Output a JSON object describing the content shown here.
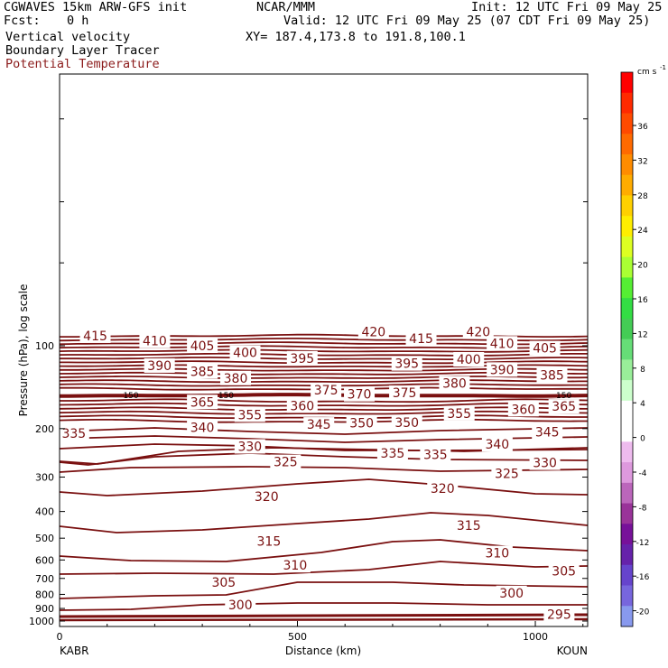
{
  "header": {
    "model": "CGWAVES 15km ARW-GFS init",
    "org": "NCAR/MMM",
    "init": "Init: 12 UTC Fri 09 May 25",
    "fcst_label": "Fcst:",
    "fcst_value": "0 h",
    "valid": "Valid: 12 UTC Fri 09 May 25 (07 CDT Fri 09 May 25)",
    "field1": "Vertical velocity",
    "xy": "XY= 187.4,173.8 to 191.8,100.1",
    "field2": "Boundary Layer Tracer",
    "field3": "Potential Temperature",
    "field3_color": "#8b1a1a"
  },
  "chart_data": {
    "type": "line",
    "title": "",
    "xlabel": "Distance (km)",
    "ylabel": "Pressure (hPa), log scale",
    "xlim": [
      0,
      1110
    ],
    "x_ticks": [
      0,
      500,
      1000
    ],
    "y_ticks": [
      100,
      200,
      300,
      400,
      500,
      600,
      700,
      800,
      900,
      1000
    ],
    "y_scale": "log",
    "endpoint_labels": [
      "KABR",
      "KOUN"
    ],
    "contour_color": "#7a1010",
    "tropopause_marker": {
      "value_label": "150"
    },
    "contour_labels": [
      {
        "x": 75,
        "p": 92,
        "text": "415"
      },
      {
        "x": 200,
        "p": 96,
        "text": "410"
      },
      {
        "x": 300,
        "p": 100,
        "text": "405"
      },
      {
        "x": 390,
        "p": 106,
        "text": "400"
      },
      {
        "x": 660,
        "p": 89,
        "text": "420"
      },
      {
        "x": 760,
        "p": 94,
        "text": "415"
      },
      {
        "x": 880,
        "p": 89,
        "text": "420"
      },
      {
        "x": 930,
        "p": 98,
        "text": "410"
      },
      {
        "x": 1020,
        "p": 102,
        "text": "405"
      },
      {
        "x": 210,
        "p": 118,
        "text": "390"
      },
      {
        "x": 300,
        "p": 124,
        "text": "385"
      },
      {
        "x": 510,
        "p": 111,
        "text": "395"
      },
      {
        "x": 730,
        "p": 116,
        "text": "395"
      },
      {
        "x": 860,
        "p": 112,
        "text": "400"
      },
      {
        "x": 930,
        "p": 122,
        "text": "390"
      },
      {
        "x": 1035,
        "p": 128,
        "text": "385"
      },
      {
        "x": 370,
        "p": 131,
        "text": "380"
      },
      {
        "x": 830,
        "p": 137,
        "text": "380"
      },
      {
        "x": 300,
        "p": 160,
        "text": "365"
      },
      {
        "x": 560,
        "p": 145,
        "text": "375"
      },
      {
        "x": 630,
        "p": 150,
        "text": "370"
      },
      {
        "x": 725,
        "p": 148,
        "text": "375"
      },
      {
        "x": 1060,
        "p": 166,
        "text": "365"
      },
      {
        "x": 400,
        "p": 178,
        "text": "355"
      },
      {
        "x": 510,
        "p": 165,
        "text": "360"
      },
      {
        "x": 840,
        "p": 176,
        "text": "355"
      },
      {
        "x": 975,
        "p": 170,
        "text": "360"
      },
      {
        "x": 30,
        "p": 208,
        "text": "335"
      },
      {
        "x": 300,
        "p": 198,
        "text": "340"
      },
      {
        "x": 545,
        "p": 193,
        "text": "345"
      },
      {
        "x": 635,
        "p": 191,
        "text": "350"
      },
      {
        "x": 730,
        "p": 190,
        "text": "350"
      },
      {
        "x": 1025,
        "p": 206,
        "text": "345"
      },
      {
        "x": 400,
        "p": 232,
        "text": "330"
      },
      {
        "x": 920,
        "p": 228,
        "text": "340"
      },
      {
        "x": 700,
        "p": 246,
        "text": "335"
      },
      {
        "x": 790,
        "p": 248,
        "text": "335"
      },
      {
        "x": 475,
        "p": 264,
        "text": "325"
      },
      {
        "x": 1020,
        "p": 266,
        "text": "330"
      },
      {
        "x": 940,
        "p": 291,
        "text": "325"
      },
      {
        "x": 435,
        "p": 353,
        "text": "320"
      },
      {
        "x": 805,
        "p": 330,
        "text": "320"
      },
      {
        "x": 860,
        "p": 450,
        "text": "315"
      },
      {
        "x": 440,
        "p": 512,
        "text": "315"
      },
      {
        "x": 920,
        "p": 566,
        "text": "310"
      },
      {
        "x": 495,
        "p": 627,
        "text": "310"
      },
      {
        "x": 1060,
        "p": 658,
        "text": "305"
      },
      {
        "x": 345,
        "p": 722,
        "text": "305"
      },
      {
        "x": 950,
        "p": 790,
        "text": "300"
      },
      {
        "x": 380,
        "p": 873,
        "text": "300"
      },
      {
        "x": 1050,
        "p": 945,
        "text": "295"
      }
    ],
    "colorbar": {
      "unit": "cm s",
      "unit_exponent": "-1",
      "ticks": [
        "36",
        "32",
        "28",
        "24",
        "20",
        "16",
        "12",
        "8",
        "4",
        "0",
        "-4",
        "-8",
        "-12",
        "-16",
        "-20"
      ],
      "colors": [
        "#ff0000",
        "#ff2a00",
        "#ff4a00",
        "#ff6a00",
        "#ff8c00",
        "#ffac00",
        "#ffd000",
        "#ffee00",
        "#ddff22",
        "#aaff33",
        "#55ee33",
        "#33dd44",
        "#44cc55",
        "#66dd77",
        "#99ee99",
        "#ccffcc",
        "#ffffff",
        "#ffffff",
        "#eebbee",
        "#dd99dd",
        "#bb66bb",
        "#993399",
        "#771199",
        "#6622aa",
        "#6644cc",
        "#7766dd",
        "#8899ee"
      ]
    }
  }
}
